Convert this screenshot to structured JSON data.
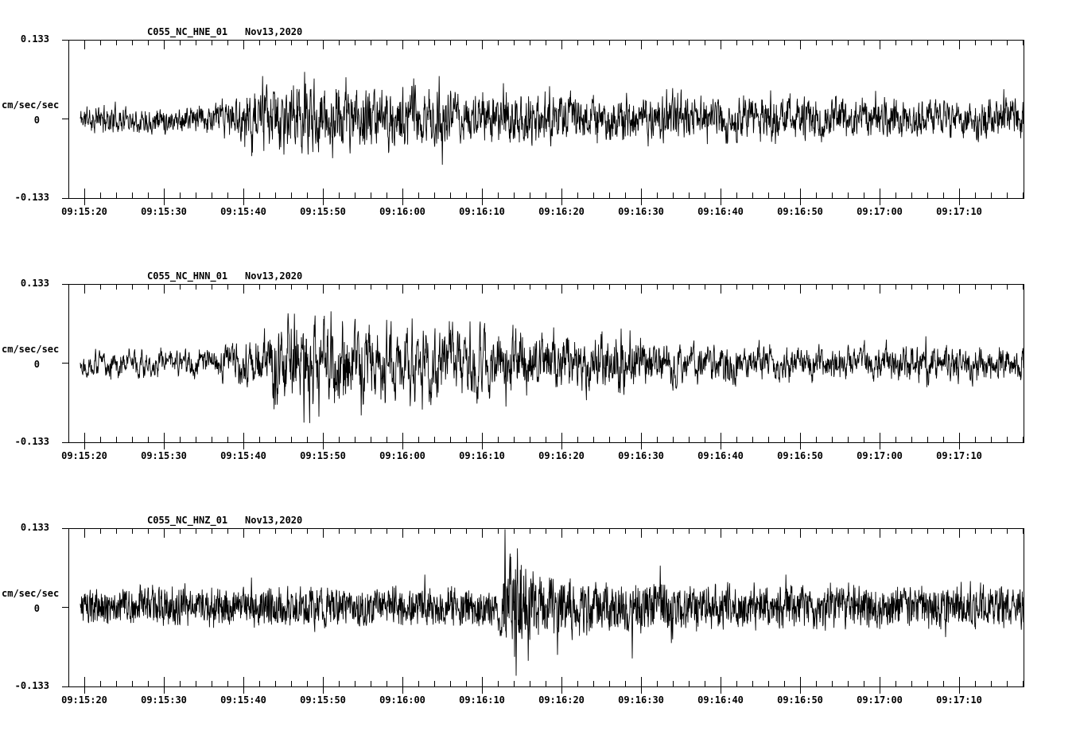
{
  "figure": {
    "background": "#ffffff",
    "trace_color": "#000000",
    "axis_color": "#000000"
  },
  "chart_data": {
    "type": "line",
    "kind": "three-component seismogram (acceleration waveforms)",
    "ylabel": "cm/sec/sec",
    "ylim": [
      -0.133,
      0.133
    ],
    "y_tick_labels": [
      "0.133",
      "0",
      "-0.133"
    ],
    "x_tick_labels": [
      "09:15:20",
      "09:15:30",
      "09:15:40",
      "09:15:50",
      "09:16:00",
      "09:16:10",
      "09:16:20",
      "09:16:30",
      "09:16:40",
      "09:16:50",
      "09:17:00",
      "09:17:10"
    ],
    "x_major_interval_sec": 10,
    "x_minor_interval_sec": 2,
    "x_start_offset_sec": 2,
    "x_total_sec": 120.2,
    "legend": "none",
    "grid": "off",
    "panels": [
      {
        "station": "C055_NC_HNE_01",
        "date": "Nov13,2020",
        "units": "cm/sec/sec",
        "y_max_label": "0.133",
        "y_zero_label": "0",
        "y_min_label": "-0.133",
        "seed": 11,
        "persist": 0.5,
        "envelope": [
          [
            0,
            0.019
          ],
          [
            18,
            0.02
          ],
          [
            22,
            0.035
          ],
          [
            26,
            0.045
          ],
          [
            30,
            0.048
          ],
          [
            34,
            0.044
          ],
          [
            40,
            0.04
          ],
          [
            45,
            0.048
          ],
          [
            48,
            0.037
          ],
          [
            55,
            0.04
          ],
          [
            60,
            0.035
          ],
          [
            68,
            0.032
          ],
          [
            80,
            0.031
          ],
          [
            90,
            0.031
          ],
          [
            100,
            0.028
          ],
          [
            110,
            0.027
          ],
          [
            120,
            0.031
          ]
        ],
        "spikes": [
          [
            24.4,
            0.072
          ],
          [
            27.1,
            -0.06
          ],
          [
            29.7,
            0.079
          ],
          [
            33.2,
            -0.066
          ],
          [
            34.9,
            0.07
          ],
          [
            43.4,
            0.068
          ],
          [
            46.6,
            0.072
          ],
          [
            47.0,
            -0.077
          ],
          [
            54.7,
            0.06
          ],
          [
            60.5,
            0.055
          ],
          [
            75.2,
            0.05
          ],
          [
            88.3,
            0.048
          ],
          [
            101.5,
            0.047
          ],
          [
            117.6,
            0.05
          ]
        ]
      },
      {
        "station": "C055_NC_HNN_01",
        "date": "Nov13,2020",
        "units": "cm/sec/sec",
        "y_max_label": "0.133",
        "y_zero_label": "0",
        "y_min_label": "-0.133",
        "seed": 22,
        "persist": 0.62,
        "envelope": [
          [
            0,
            0.019
          ],
          [
            18,
            0.02
          ],
          [
            23,
            0.035
          ],
          [
            27,
            0.061
          ],
          [
            30,
            0.064
          ],
          [
            33,
            0.059
          ],
          [
            37,
            0.056
          ],
          [
            41,
            0.053
          ],
          [
            46,
            0.048
          ],
          [
            52,
            0.045
          ],
          [
            58,
            0.043
          ],
          [
            64,
            0.04
          ],
          [
            70,
            0.039
          ],
          [
            76,
            0.032
          ],
          [
            84,
            0.025
          ],
          [
            92,
            0.023
          ],
          [
            100,
            0.023
          ],
          [
            108,
            0.027
          ],
          [
            114,
            0.025
          ],
          [
            120,
            0.025
          ]
        ],
        "spikes": [
          [
            26,
            -0.07
          ],
          [
            28.4,
            0.083
          ],
          [
            29.6,
            -0.1
          ],
          [
            31.5,
            -0.09
          ],
          [
            33,
            0.087
          ],
          [
            36.8,
            -0.088
          ],
          [
            43.2,
            0.075
          ],
          [
            44.5,
            -0.078
          ],
          [
            50.5,
            0.07
          ],
          [
            55,
            -0.073
          ],
          [
            61,
            0.06
          ],
          [
            69.5,
            0.058
          ],
          [
            70.6,
            0.055
          ],
          [
            107.8,
            0.045
          ]
        ]
      },
      {
        "station": "C055_NC_HNZ_01",
        "date": "Nov13,2020",
        "units": "cm/sec/sec",
        "y_max_label": "0.133",
        "y_zero_label": "0",
        "y_min_label": "-0.133",
        "seed": 33,
        "persist": 0.3,
        "envelope": [
          [
            0,
            0.028
          ],
          [
            20,
            0.028
          ],
          [
            30,
            0.031
          ],
          [
            40,
            0.029
          ],
          [
            50,
            0.029
          ],
          [
            54,
            0.032
          ],
          [
            55,
            0.053
          ],
          [
            56,
            0.083
          ],
          [
            57,
            0.067
          ],
          [
            58.5,
            0.053
          ],
          [
            61,
            0.043
          ],
          [
            65,
            0.039
          ],
          [
            70,
            0.036
          ],
          [
            74,
            0.04
          ],
          [
            76,
            0.035
          ],
          [
            85,
            0.032
          ],
          [
            95,
            0.032
          ],
          [
            105,
            0.032
          ],
          [
            115,
            0.032
          ],
          [
            120,
            0.033
          ]
        ],
        "spikes": [
          [
            23,
            0.05
          ],
          [
            44.8,
            0.055
          ],
          [
            54.9,
            0.133
          ],
          [
            55.6,
            0.085
          ],
          [
            56.3,
            -0.115
          ],
          [
            56.45,
            0.099
          ],
          [
            57.8,
            -0.09
          ],
          [
            61.5,
            -0.08
          ],
          [
            70.9,
            -0.086
          ],
          [
            74.4,
            0.07
          ],
          [
            75.8,
            -0.06
          ],
          [
            90.2,
            0.055
          ],
          [
            110.3,
            -0.05
          ]
        ]
      }
    ]
  }
}
